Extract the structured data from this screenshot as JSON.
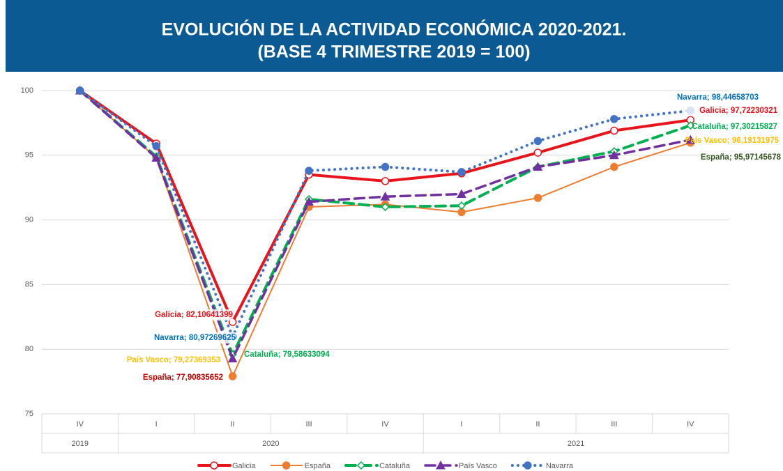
{
  "chart_data": {
    "type": "line",
    "title": "EVOLUCIÓN DE LA ACTIVIDAD ECONÓMICA 2020-2021.",
    "subtitle": "(BASE 4 TRIMESTRE 2019 = 100)",
    "categories": [
      "IV",
      "I",
      "II",
      "III",
      "IV",
      "I",
      "II",
      "III",
      "IV"
    ],
    "years": [
      "2019",
      "2020",
      null,
      null,
      null,
      "2021",
      null,
      null,
      null
    ],
    "ylim": [
      75,
      100
    ],
    "yticks": [
      75,
      80,
      85,
      90,
      95,
      100
    ],
    "grid": true,
    "legend": "bottom",
    "series": [
      {
        "name": "Galicia",
        "color": "#e8141b",
        "marker": "open-circle",
        "dash": "solid",
        "values": [
          100,
          95.9,
          82.10641399,
          93.5,
          93.0,
          93.6,
          95.2,
          96.9,
          97.72230321
        ],
        "value_labels": [
          null,
          null,
          "Galicia; 82,10641399",
          null,
          null,
          null,
          null,
          null,
          "Galicia; 97,72230321"
        ]
      },
      {
        "name": "España",
        "color": "#ed7d31",
        "marker": "circle",
        "dash": "solid",
        "values": [
          100,
          94.8,
          77.90835652,
          91.0,
          91.2,
          90.6,
          91.7,
          94.1,
          95.97145678
        ],
        "value_labels": [
          null,
          null,
          "España; 77,90835652",
          null,
          null,
          null,
          null,
          null,
          "España; 95,97145678"
        ]
      },
      {
        "name": "Cataluña",
        "color": "#00b050",
        "marker": "open-diamond",
        "dash": "dashed",
        "values": [
          100,
          94.9,
          79.58633094,
          91.6,
          91.0,
          91.1,
          94.1,
          95.3,
          97.30215827
        ],
        "value_labels": [
          null,
          null,
          "Cataluña; 79,58633094",
          null,
          null,
          null,
          null,
          null,
          "Cataluña; 97,30215827"
        ]
      },
      {
        "name": "País Vasco",
        "color": "#7030a0",
        "marker": "triangle",
        "dash": "dashed",
        "values": [
          100,
          94.8,
          79.27369353,
          91.4,
          91.8,
          92.0,
          94.1,
          95.0,
          96.19131975
        ],
        "value_labels": [
          null,
          null,
          "País Vasco; 79,27369353",
          null,
          null,
          null,
          null,
          null,
          "País Vasco; 96,19131975"
        ]
      },
      {
        "name": "Navarra",
        "color": "#4472c4",
        "marker": "circle",
        "dash": "dotted",
        "values": [
          100,
          95.7,
          80.97269625,
          93.8,
          94.1,
          93.7,
          96.1,
          97.8,
          98.44658703
        ],
        "value_labels": [
          null,
          null,
          "Navarra; 80,97269625",
          null,
          null,
          null,
          null,
          null,
          "Navarra; 98,44658703"
        ]
      }
    ]
  }
}
